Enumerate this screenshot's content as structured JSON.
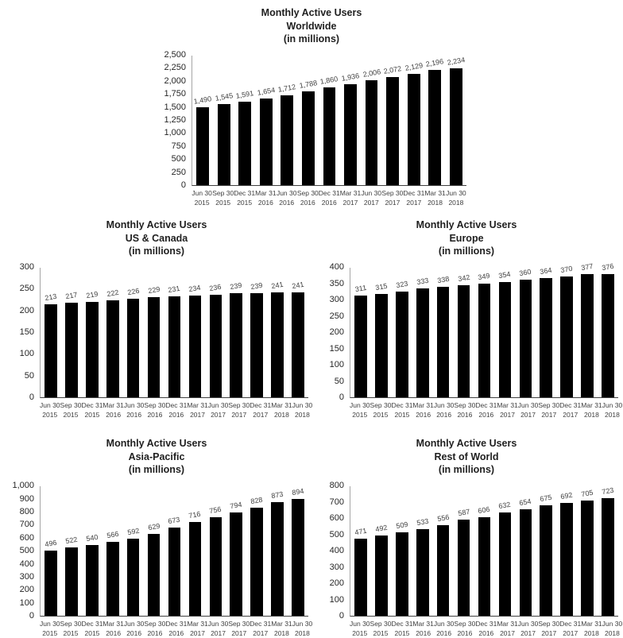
{
  "page": {
    "background": "#ffffff"
  },
  "colors": {
    "bar": "#000000",
    "title_text": "#1f1f1f",
    "y_tick_text": "#262626",
    "data_label_text": "#404040",
    "x_tick_text": "#404040",
    "y_axis_line": "#a6a6a6",
    "x_axis_line": "#404040"
  },
  "chart_data": [
    {
      "type": "bar",
      "title": "Monthly Active Users Worldwide (in millions)",
      "title_lines": [
        "Monthly Active Users",
        "Worldwide",
        "(in millions)"
      ],
      "categories": [
        "Jun 30 2015",
        "Sep 30 2015",
        "Dec 31 2015",
        "Mar 31 2016",
        "Jun 30 2016",
        "Sep 30 2016",
        "Dec 31 2016",
        "Mar 31 2017",
        "Jun 30 2017",
        "Sep 30 2017",
        "Dec 31 2017",
        "Mar 31 2018",
        "Jun 30 2018"
      ],
      "values": [
        1490,
        1545,
        1591,
        1654,
        1712,
        1788,
        1860,
        1936,
        2006,
        2072,
        2129,
        2196,
        2234
      ],
      "value_labels": [
        "1,490",
        "1,545",
        "1,591",
        "1,654",
        "1,712",
        "1,788",
        "1,860",
        "1,936",
        "2,006",
        "2,072",
        "2,129",
        "2,196",
        "2,234"
      ],
      "ylim": [
        0,
        2500
      ],
      "ystep": 250,
      "ytick_labels": [
        "0",
        "250",
        "500",
        "750",
        "1,000",
        "1,250",
        "1,500",
        "1,750",
        "2,000",
        "2,250",
        "2,500"
      ],
      "bar_color": "#000000",
      "grid": false,
      "legend": "none"
    },
    {
      "type": "bar",
      "title": "Monthly Active Users US & Canada (in millions)",
      "title_lines": [
        "Monthly Active Users",
        "US & Canada",
        "(in millions)"
      ],
      "categories": [
        "Jun 30 2015",
        "Sep 30 2015",
        "Dec 31 2015",
        "Mar 31 2016",
        "Jun 30 2016",
        "Sep 30 2016",
        "Dec 31 2016",
        "Mar 31 2017",
        "Jun 30 2017",
        "Sep 30 2017",
        "Dec 31 2017",
        "Mar 31 2018",
        "Jun 30 2018"
      ],
      "values": [
        213,
        217,
        219,
        222,
        226,
        229,
        231,
        234,
        236,
        239,
        239,
        241,
        241
      ],
      "value_labels": [
        "213",
        "217",
        "219",
        "222",
        "226",
        "229",
        "231",
        "234",
        "236",
        "239",
        "239",
        "241",
        "241"
      ],
      "ylim": [
        0,
        300
      ],
      "ystep": 50,
      "ytick_labels": [
        "0",
        "50",
        "100",
        "150",
        "200",
        "250",
        "300"
      ],
      "bar_color": "#000000",
      "grid": false,
      "legend": "none"
    },
    {
      "type": "bar",
      "title": "Monthly Active Users Europe (in millions)",
      "title_lines": [
        "Monthly Active Users",
        "Europe",
        "(in millions)"
      ],
      "categories": [
        "Jun 30 2015",
        "Sep 30 2015",
        "Dec 31 2015",
        "Mar 31 2016",
        "Jun 30 2016",
        "Sep 30 2016",
        "Dec 31 2016",
        "Mar 31 2017",
        "Jun 30 2017",
        "Sep 30 2017",
        "Dec 31 2017",
        "Mar 31 2018",
        "Jun 30 2018"
      ],
      "values": [
        311,
        315,
        323,
        333,
        338,
        342,
        349,
        354,
        360,
        364,
        370,
        377,
        376
      ],
      "value_labels": [
        "311",
        "315",
        "323",
        "333",
        "338",
        "342",
        "349",
        "354",
        "360",
        "364",
        "370",
        "377",
        "376"
      ],
      "ylim": [
        0,
        400
      ],
      "ystep": 50,
      "ytick_labels": [
        "0",
        "50",
        "100",
        "150",
        "200",
        "250",
        "300",
        "350",
        "400"
      ],
      "bar_color": "#000000",
      "grid": false,
      "legend": "none"
    },
    {
      "type": "bar",
      "title": "Monthly Active Users Asia-Pacific (in millions)",
      "title_lines": [
        "Monthly Active Users",
        "Asia-Pacific",
        "(in millions)"
      ],
      "categories": [
        "Jun 30 2015",
        "Sep 30 2015",
        "Dec 31 2015",
        "Mar 31 2016",
        "Jun 30 2016",
        "Sep 30 2016",
        "Dec 31 2016",
        "Mar 31 2017",
        "Jun 30 2017",
        "Sep 30 2017",
        "Dec 31 2017",
        "Mar 31 2018",
        "Jun 30 2018"
      ],
      "values": [
        496,
        522,
        540,
        566,
        592,
        629,
        673,
        716,
        756,
        794,
        828,
        873,
        894
      ],
      "value_labels": [
        "496",
        "522",
        "540",
        "566",
        "592",
        "629",
        "673",
        "716",
        "756",
        "794",
        "828",
        "873",
        "894"
      ],
      "ylim": [
        0,
        1000
      ],
      "ystep": 100,
      "ytick_labels": [
        "0",
        "100",
        "200",
        "300",
        "400",
        "500",
        "600",
        "700",
        "800",
        "900",
        "1,000"
      ],
      "bar_color": "#000000",
      "grid": false,
      "legend": "none"
    },
    {
      "type": "bar",
      "title": "Monthly Active Users Rest of World (in millions)",
      "title_lines": [
        "Monthly Active Users",
        "Rest of World",
        "(in millions)"
      ],
      "categories": [
        "Jun 30 2015",
        "Sep 30 2015",
        "Dec 31 2015",
        "Mar 31 2016",
        "Jun 30 2016",
        "Sep 30 2016",
        "Dec 31 2016",
        "Mar 31 2017",
        "Jun 30 2017",
        "Sep 30 2017",
        "Dec 31 2017",
        "Mar 31 2018",
        "Jun 30 2018"
      ],
      "values": [
        471,
        492,
        509,
        533,
        556,
        587,
        606,
        632,
        654,
        675,
        692,
        705,
        723
      ],
      "value_labels": [
        "471",
        "492",
        "509",
        "533",
        "556",
        "587",
        "606",
        "632",
        "654",
        "675",
        "692",
        "705",
        "723"
      ],
      "ylim": [
        0,
        800
      ],
      "ystep": 100,
      "ytick_labels": [
        "0",
        "100",
        "200",
        "300",
        "400",
        "500",
        "600",
        "700",
        "800"
      ],
      "bar_color": "#000000",
      "grid": false,
      "legend": "none"
    }
  ]
}
